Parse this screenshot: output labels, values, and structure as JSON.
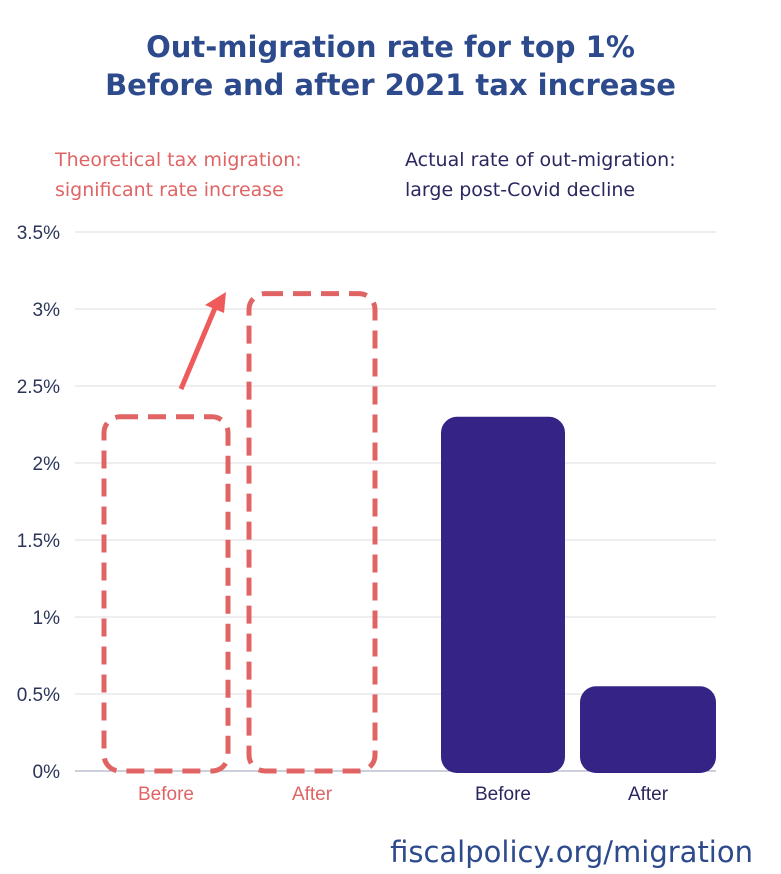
{
  "chart_data": {
    "type": "bar",
    "title": "Out-migration rate for top 1%",
    "subtitle": "Before and after 2021 tax increase",
    "categories": [
      "Before",
      "After",
      "Before",
      "After"
    ],
    "groups": [
      {
        "label": "Theoretical tax migration:\nsignificant rate increase",
        "label_lines": [
          "Theoretical tax migration:",
          "significant rate increase"
        ],
        "style": "dashed-outline",
        "color": "#e06464",
        "values": [
          2.3,
          3.1
        ]
      },
      {
        "label_lines": [
          "Actual rate of out-migration:",
          "large post-Covid decline"
        ],
        "style": "filled",
        "color": "#352486",
        "values": [
          2.3,
          0.55
        ]
      }
    ],
    "y_ticks": [
      "0%",
      "0.5%",
      "1%",
      "1.5%",
      "2%",
      "2.5%",
      "3%",
      "3.5%"
    ],
    "ylim": [
      0,
      3.5
    ],
    "grid": true,
    "annotation": "arrow from theoretical Before to theoretical After"
  },
  "footer": "fiscalpolicy.org/migration"
}
